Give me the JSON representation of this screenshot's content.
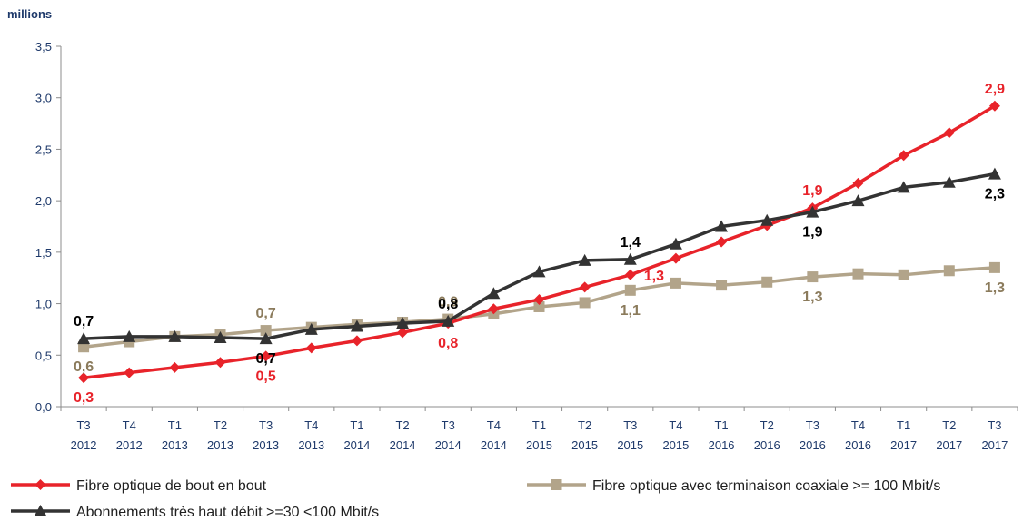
{
  "chart_data": {
    "type": "line",
    "unit_label": "millions",
    "ylim": [
      0,
      3.5
    ],
    "y_ticks": [
      "0,0",
      "0,5",
      "1,0",
      "1,5",
      "2,0",
      "2,5",
      "3,0",
      "3,5"
    ],
    "categories": [
      [
        "T3",
        "2012"
      ],
      [
        "T4",
        "2012"
      ],
      [
        "T1",
        "2013"
      ],
      [
        "T2",
        "2013"
      ],
      [
        "T3",
        "2013"
      ],
      [
        "T4",
        "2013"
      ],
      [
        "T1",
        "2014"
      ],
      [
        "T2",
        "2014"
      ],
      [
        "T3",
        "2014"
      ],
      [
        "T4",
        "2014"
      ],
      [
        "T1",
        "2015"
      ],
      [
        "T2",
        "2015"
      ],
      [
        "T3",
        "2015"
      ],
      [
        "T4",
        "2015"
      ],
      [
        "T1",
        "2016"
      ],
      [
        "T2",
        "2016"
      ],
      [
        "T3",
        "2016"
      ],
      [
        "T4",
        "2016"
      ],
      [
        "T1",
        "2017"
      ],
      [
        "T2",
        "2017"
      ],
      [
        "T3",
        "2017"
      ]
    ],
    "grid": false,
    "legend_position": "bottom",
    "series": [
      {
        "name": "Fibre optique de bout en bout",
        "color": "#e8232a",
        "marker": "diamond",
        "values": [
          0.28,
          0.33,
          0.38,
          0.43,
          0.49,
          0.57,
          0.64,
          0.72,
          0.81,
          0.95,
          1.04,
          1.16,
          1.28,
          1.44,
          1.6,
          1.76,
          1.93,
          2.17,
          2.44,
          2.66,
          2.92
        ],
        "labels": [
          {
            "index": 0,
            "text": "0,3",
            "pos": "below"
          },
          {
            "index": 4,
            "text": "0,5",
            "pos": "below"
          },
          {
            "index": 8,
            "text": "0,8",
            "pos": "below"
          },
          {
            "index": 12,
            "text": "1,3",
            "pos": "right"
          },
          {
            "index": 16,
            "text": "1,9",
            "pos": "above"
          },
          {
            "index": 20,
            "text": "2,9",
            "pos": "above"
          }
        ]
      },
      {
        "name": "Fibre optique avec terminaison coaxiale >= 100 Mbit/s",
        "color": "#b2a48a",
        "marker": "square",
        "values": [
          0.58,
          0.63,
          0.68,
          0.7,
          0.74,
          0.77,
          0.8,
          0.82,
          0.85,
          0.9,
          0.97,
          1.01,
          1.13,
          1.2,
          1.18,
          1.21,
          1.26,
          1.29,
          1.28,
          1.32,
          1.35
        ],
        "labels": [
          {
            "index": 0,
            "text": "0,6",
            "pos": "below"
          },
          {
            "index": 4,
            "text": "0,7",
            "pos": "above"
          },
          {
            "index": 8,
            "text": "0,9",
            "pos": "above"
          },
          {
            "index": 12,
            "text": "1,1",
            "pos": "below"
          },
          {
            "index": 16,
            "text": "1,3",
            "pos": "below"
          },
          {
            "index": 20,
            "text": "1,3",
            "pos": "below"
          }
        ]
      },
      {
        "name": "Abonnements très haut débit >=30 <100 Mbit/s",
        "color": "#333333",
        "marker": "triangle",
        "values": [
          0.66,
          0.68,
          0.68,
          0.67,
          0.66,
          0.75,
          0.78,
          0.81,
          0.83,
          1.1,
          1.31,
          1.42,
          1.43,
          1.58,
          1.75,
          1.81,
          1.89,
          2.0,
          2.13,
          2.18,
          2.26
        ],
        "labels": [
          {
            "index": 0,
            "text": "0,7",
            "pos": "above"
          },
          {
            "index": 4,
            "text": "0,7",
            "pos": "below"
          },
          {
            "index": 8,
            "text": "0,8",
            "pos": "above"
          },
          {
            "index": 12,
            "text": "1,4",
            "pos": "above"
          },
          {
            "index": 16,
            "text": "1,9",
            "pos": "below"
          },
          {
            "index": 20,
            "text": "2,3",
            "pos": "below"
          }
        ]
      }
    ]
  }
}
